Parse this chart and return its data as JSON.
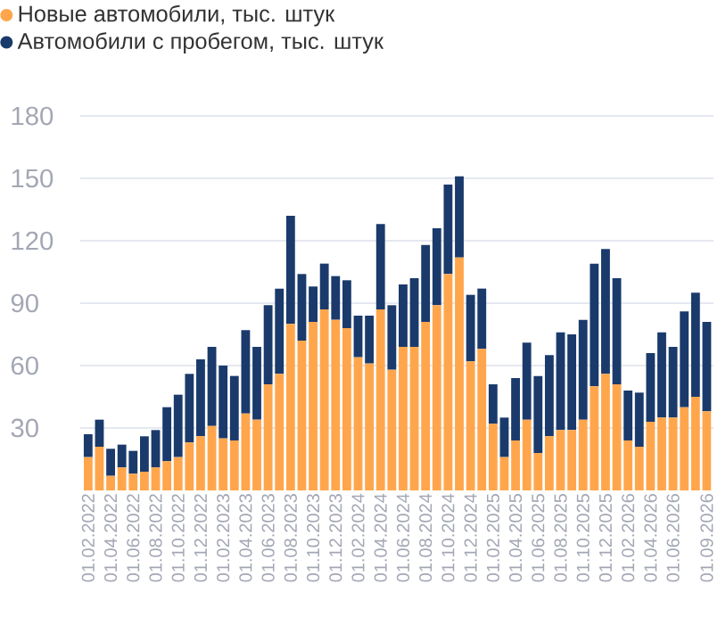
{
  "chart_data": {
    "type": "bar",
    "stacked": true,
    "categories": [
      "01.02.2022",
      null,
      "01.04.2022",
      null,
      "01.06.2022",
      null,
      "01.08.2022",
      null,
      "01.10.2022",
      null,
      "01.12.2022",
      null,
      "01.02.2023",
      null,
      "01.04.2023",
      null,
      "01.06.2023",
      null,
      "01.08.2023",
      null,
      "01.10.2023",
      null,
      "01.12.2023",
      null,
      "01.02.2024",
      null,
      "01.04.2024",
      null,
      "01.06.2024",
      null,
      "01.08.2024",
      null,
      "01.10.2024",
      null,
      "01.12.2024",
      null,
      "01.02.2025",
      null,
      "01.04.2025",
      null,
      "01.06.2025",
      null,
      "01.08.2025",
      null,
      "01.10.2025",
      null,
      "01.12.2025",
      null,
      "01.02.2026",
      null,
      "01.04.2026",
      null,
      "01.06.2026",
      null,
      null,
      "01.09.2026"
    ],
    "series": [
      {
        "name": "Новые автомобили, тыс. штук",
        "color": "#ffa64d",
        "values": [
          16,
          21,
          7,
          11,
          8,
          9,
          11,
          14,
          16,
          23,
          26,
          31,
          25,
          24,
          37,
          34,
          51,
          56,
          80,
          72,
          81,
          87,
          82,
          78,
          64,
          61,
          87,
          58,
          69,
          69,
          81,
          89,
          104,
          112,
          62,
          68,
          32,
          16,
          24,
          34,
          18,
          26,
          29,
          29,
          34,
          50,
          56,
          51,
          24,
          21,
          33,
          35,
          35,
          40,
          45,
          38
        ]
      },
      {
        "name": "Автомобили с пробегом, тыс. штук",
        "color": "#1a3a6b",
        "values": [
          11,
          13,
          13,
          11,
          11,
          17,
          18,
          26,
          30,
          33,
          37,
          38,
          35,
          31,
          40,
          35,
          38,
          41,
          52,
          32,
          17,
          22,
          21,
          23,
          20,
          23,
          41,
          31,
          30,
          33,
          37,
          37,
          43,
          39,
          32,
          29,
          19,
          19,
          30,
          37,
          37,
          39,
          47,
          46,
          48,
          59,
          60,
          51,
          24,
          26,
          33,
          41,
          34,
          46,
          50,
          43
        ]
      }
    ],
    "ylim": [
      0,
      180
    ],
    "yticks": [
      30,
      60,
      90,
      120,
      150,
      180
    ],
    "grid": "y",
    "legend": "top left"
  }
}
